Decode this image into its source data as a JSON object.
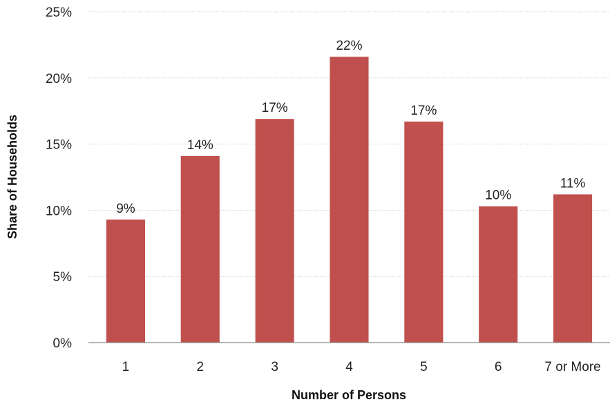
{
  "chart_data": {
    "type": "bar",
    "categories": [
      "1",
      "2",
      "3",
      "4",
      "5",
      "6",
      "7 or More"
    ],
    "values": [
      9.3,
      14.1,
      16.9,
      21.6,
      16.7,
      10.3,
      11.2
    ],
    "data_labels": [
      "9%",
      "14%",
      "17%",
      "22%",
      "17%",
      "10%",
      "11%"
    ],
    "xlabel": "Number of Persons",
    "ylabel": "Share of Households",
    "ylim": [
      0,
      25
    ],
    "yticks": [
      0,
      5,
      10,
      15,
      20,
      25
    ],
    "ytick_labels": [
      "0%",
      "5%",
      "10%",
      "15%",
      "20%",
      "25%"
    ],
    "grid": true,
    "bar_color": "#c0504d"
  }
}
